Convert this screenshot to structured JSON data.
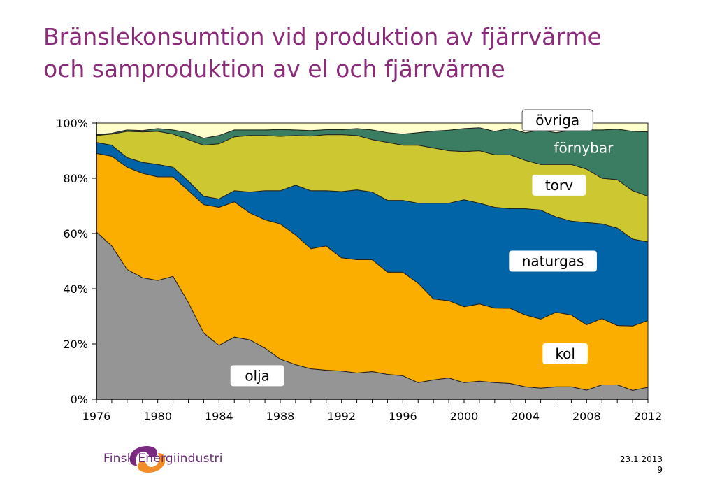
{
  "slide": {
    "title_line1": "Bränslekonsumtion vid produktion av fjärrvärme",
    "title_line2": "och samproduktion av el och fjärrvärme",
    "logo_text": "Finsk Energiindustri",
    "date": "23.1.2013",
    "page_number": "9"
  },
  "colors": {
    "title": "#8b2c7a",
    "logo_purple": "#7a2a80",
    "logo_orange": "#f28c28"
  },
  "chart_data": {
    "type": "area",
    "stacked": true,
    "percent": true,
    "x": [
      1976,
      1977,
      1978,
      1979,
      1980,
      1981,
      1982,
      1983,
      1984,
      1985,
      1986,
      1987,
      1988,
      1989,
      1990,
      1991,
      1992,
      1993,
      1994,
      1995,
      1996,
      1997,
      1998,
      1999,
      2000,
      2001,
      2002,
      2003,
      2004,
      2005,
      2006,
      2007,
      2008,
      2009,
      2010,
      2011,
      2012
    ],
    "xlim": [
      1976,
      2012
    ],
    "xticks": [
      "1976",
      "1980",
      "1984",
      "1988",
      "1992",
      "1996",
      "2000",
      "2004",
      "2008",
      "2012"
    ],
    "ylim": [
      0,
      100
    ],
    "yticks": [
      "0%",
      "20%",
      "40%",
      "60%",
      "80%",
      "100%"
    ],
    "series": [
      {
        "name": "olja",
        "color": "#959595",
        "values": [
          60.5,
          55.5,
          47,
          44,
          43,
          44.5,
          35,
          24,
          19.5,
          22.5,
          21.5,
          18.5,
          14.5,
          12.5,
          11,
          10.5,
          10.2,
          9.5,
          10,
          9,
          8.5,
          6,
          7,
          7.7,
          6,
          6.5,
          6,
          5.7,
          4.5,
          4,
          4.5,
          4.5,
          3.3,
          5.2,
          5.2,
          3.2,
          4.3
        ]
      },
      {
        "name": "kol",
        "color": "#fbad00",
        "values": [
          28.5,
          32.5,
          37,
          37.8,
          37.5,
          36,
          40.5,
          46.5,
          50,
          49,
          46,
          46.5,
          49,
          47,
          43.5,
          45,
          41,
          41,
          40.5,
          37,
          37.5,
          36,
          29.3,
          28,
          27.5,
          28,
          27,
          27.2,
          26,
          25,
          27,
          26,
          23.7,
          24,
          21.5,
          23.3,
          24.2
        ]
      },
      {
        "name": "naturgas",
        "color": "#0064a6",
        "values": [
          4,
          4,
          3.5,
          4,
          4.5,
          3.5,
          3.5,
          3,
          3,
          4,
          7.5,
          10.5,
          12,
          18,
          21,
          20,
          24,
          25.3,
          24.5,
          26,
          26,
          29,
          34.7,
          35.3,
          38.7,
          36.5,
          36.5,
          36.1,
          38.5,
          39.5,
          34.5,
          34,
          37,
          34.3,
          35.3,
          31.5,
          28.5
        ]
      },
      {
        "name": "torv",
        "color": "#cdc831",
        "values": [
          2.5,
          4,
          9.5,
          11,
          12,
          12,
          15,
          18.5,
          20,
          19.5,
          20.5,
          20,
          19.7,
          18,
          19.8,
          20.3,
          20.6,
          19.7,
          19,
          21,
          20,
          21,
          20,
          19,
          17.5,
          19,
          19,
          19.5,
          17.5,
          16.5,
          19,
          20.5,
          19.3,
          16.5,
          17.5,
          17.5,
          16.5
        ]
      },
      {
        "name": "förnybar",
        "color": "#3a7d62",
        "values": [
          0.3,
          0.3,
          0.5,
          0.5,
          1,
          1.5,
          2.5,
          2.5,
          3,
          2.5,
          2,
          2,
          2.5,
          2,
          2,
          1.8,
          1.8,
          2.5,
          3.5,
          3.5,
          4,
          4.5,
          6.1,
          7.4,
          8.3,
          8.3,
          8.5,
          9.5,
          10,
          12.5,
          11.5,
          12.5,
          14.2,
          17.5,
          18.3,
          21.5,
          23.3
        ]
      },
      {
        "name": "övriga",
        "color": "#fefdcc",
        "values": [
          4.2,
          3.7,
          2.5,
          2.7,
          2,
          2.5,
          3.5,
          5.5,
          4.5,
          2.5,
          2.5,
          2.5,
          2.3,
          2.5,
          2.7,
          2.4,
          2.4,
          2,
          2.5,
          3.5,
          4,
          3.5,
          2.9,
          2.6,
          2,
          1.7,
          3,
          2,
          3.5,
          2.5,
          3.5,
          2.5,
          2.5,
          2.5,
          2.2,
          3,
          3.2
        ]
      }
    ],
    "labels": [
      {
        "series": "olja",
        "text": "olja",
        "at_year": 1986.5,
        "at_pct": 8.5,
        "style": "white"
      },
      {
        "series": "kol",
        "text": "kol",
        "at_year": 2006.6,
        "at_pct": 16.5,
        "style": "white"
      },
      {
        "series": "naturgas",
        "text": "naturgas",
        "at_year": 2005.8,
        "at_pct": 50,
        "style": "white"
      },
      {
        "series": "torv",
        "text": "torv",
        "at_year": 2006.2,
        "at_pct": 77.5,
        "style": "white"
      },
      {
        "series": "förnybar",
        "text": "förnybar",
        "at_year": 2007.8,
        "at_pct": 91,
        "style": "dark"
      },
      {
        "series": "övriga",
        "text": "övriga",
        "at_year": 2006.1,
        "at_pct": 101,
        "style": "white-outlined"
      }
    ],
    "grid": false
  }
}
